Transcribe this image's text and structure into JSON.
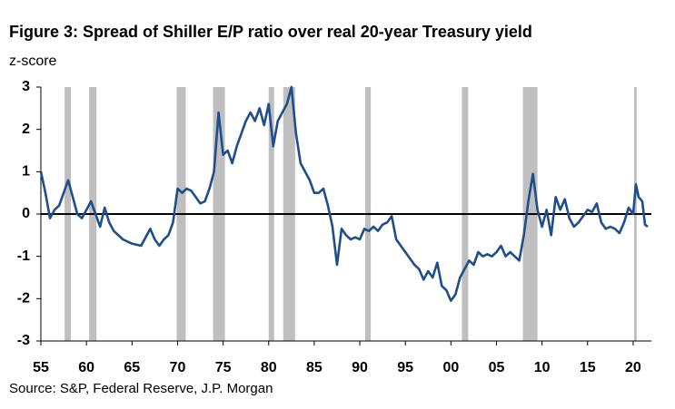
{
  "chart_data": {
    "type": "line",
    "title": "Figure 3: Spread of Shiller E/P ratio over real 20-year Treasury yield",
    "y_label": "z-score",
    "source": "Source: S&P, Federal Reserve, J.P. Morgan",
    "color": "#1f4e8c",
    "shade_color": "#bfbfbf",
    "hline": 0,
    "shaded_periods": [
      [
        1957.6,
        1958.3
      ],
      [
        1960.3,
        1961.1
      ],
      [
        1969.9,
        1970.9
      ],
      [
        1973.9,
        1975.2
      ],
      [
        1980.0,
        1980.6
      ],
      [
        1981.6,
        1982.9
      ],
      [
        1990.6,
        1991.2
      ],
      [
        2001.2,
        2001.9
      ],
      [
        2007.9,
        2009.5
      ],
      [
        2020.1,
        2020.4
      ]
    ],
    "xlim": [
      1955,
      2022
    ],
    "ylim": [
      -3,
      3
    ],
    "yticks": [
      -3,
      -2,
      -1,
      0,
      1,
      2,
      3
    ],
    "xticks": [
      {
        "value": 1955,
        "label": "55"
      },
      {
        "value": 1960,
        "label": "60"
      },
      {
        "value": 1965,
        "label": "65"
      },
      {
        "value": 1970,
        "label": "70"
      },
      {
        "value": 1975,
        "label": "75"
      },
      {
        "value": 1980,
        "label": "80"
      },
      {
        "value": 1985,
        "label": "85"
      },
      {
        "value": 1990,
        "label": "90"
      },
      {
        "value": 1995,
        "label": "95"
      },
      {
        "value": 2000,
        "label": "00"
      },
      {
        "value": 2005,
        "label": "05"
      },
      {
        "value": 2010,
        "label": "10"
      },
      {
        "value": 2015,
        "label": "15"
      },
      {
        "value": 2020,
        "label": "20"
      }
    ],
    "x": [
      1955,
      1955.5,
      1956,
      1956.5,
      1957,
      1957.5,
      1958,
      1958.5,
      1959,
      1959.5,
      1960,
      1960.5,
      1961,
      1961.5,
      1962,
      1962.5,
      1963,
      1964,
      1965,
      1966,
      1966.5,
      1967,
      1967.5,
      1968,
      1968.5,
      1969,
      1969.5,
      1970,
      1970.5,
      1971,
      1971.5,
      1972,
      1972.5,
      1973,
      1973.5,
      1974,
      1974.5,
      1975,
      1975.5,
      1976,
      1976.5,
      1977,
      1977.5,
      1978,
      1978.5,
      1979,
      1979.5,
      1980,
      1980.5,
      1981,
      1981.5,
      1982,
      1982.5,
      1983,
      1983.5,
      1984,
      1984.5,
      1985,
      1985.5,
      1986,
      1986.5,
      1987,
      1987.5,
      1988,
      1988.5,
      1989,
      1989.5,
      1990,
      1990.5,
      1991,
      1991.5,
      1992,
      1992.5,
      1993,
      1993.5,
      1994,
      1995,
      1996,
      1996.5,
      1997,
      1997.5,
      1998,
      1998.5,
      1999,
      1999.5,
      2000,
      2000.5,
      2001,
      2001.5,
      2002,
      2002.5,
      2003,
      2003.5,
      2004,
      2004.5,
      2005,
      2005.5,
      2006,
      2006.5,
      2007,
      2007.5,
      2008,
      2008.5,
      2009,
      2009.5,
      2010,
      2010.5,
      2011,
      2011.5,
      2012,
      2012.5,
      2013,
      2013.5,
      2014,
      2014.5,
      2015,
      2015.5,
      2016,
      2016.5,
      2017,
      2017.5,
      2018,
      2018.5,
      2019,
      2019.5,
      2020,
      2020.3,
      2020.6,
      2021,
      2021.3,
      2021.6
    ],
    "values": [
      1.0,
      0.5,
      -0.1,
      0.1,
      0.2,
      0.5,
      0.8,
      0.4,
      0.0,
      -0.1,
      0.1,
      0.3,
      0.0,
      -0.3,
      0.15,
      -0.2,
      -0.4,
      -0.6,
      -0.7,
      -0.75,
      -0.55,
      -0.35,
      -0.6,
      -0.75,
      -0.6,
      -0.5,
      -0.2,
      0.6,
      0.5,
      0.6,
      0.55,
      0.4,
      0.25,
      0.3,
      0.6,
      1.0,
      2.4,
      1.4,
      1.5,
      1.2,
      1.6,
      1.9,
      2.2,
      2.4,
      2.2,
      2.5,
      2.1,
      2.6,
      1.6,
      2.2,
      2.4,
      2.6,
      3.0,
      1.9,
      1.2,
      1.0,
      0.8,
      0.5,
      0.5,
      0.6,
      0.2,
      -0.3,
      -1.2,
      -0.35,
      -0.5,
      -0.6,
      -0.55,
      -0.6,
      -0.35,
      -0.4,
      -0.3,
      -0.4,
      -0.25,
      -0.2,
      -0.05,
      -0.6,
      -0.9,
      -1.2,
      -1.3,
      -1.55,
      -1.35,
      -1.5,
      -1.15,
      -1.7,
      -1.8,
      -2.05,
      -1.9,
      -1.5,
      -1.3,
      -1.1,
      -1.2,
      -0.9,
      -1.0,
      -0.95,
      -1.0,
      -0.9,
      -0.75,
      -1.0,
      -0.9,
      -1.0,
      -1.1,
      -0.5,
      0.3,
      0.95,
      0.1,
      -0.3,
      0.1,
      -0.5,
      0.4,
      0.1,
      0.35,
      -0.1,
      -0.3,
      -0.2,
      -0.05,
      0.1,
      0.05,
      0.25,
      -0.2,
      -0.35,
      -0.3,
      -0.35,
      -0.45,
      -0.2,
      0.15,
      0.0,
      0.7,
      0.4,
      0.3,
      -0.25,
      -0.3
    ]
  }
}
